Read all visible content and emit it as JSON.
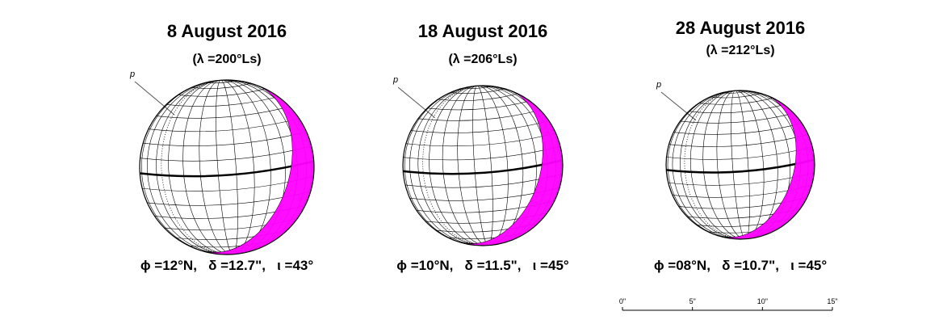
{
  "panels": [
    {
      "title": "8 August 2016",
      "subtitle": "(λ =200°Ls)",
      "pole": "p",
      "footer": "ϕ =12°N,   δ =12.7\",   ι =43°"
    },
    {
      "title": "18 August 2016",
      "subtitle": "(λ =206°Ls)",
      "pole": "p",
      "footer": "ϕ =10°N,   δ =11.5\",   ι =45°"
    },
    {
      "title": "28 August 2016",
      "subtitle": "(λ =212°Ls)",
      "pole": "p",
      "footer": "ϕ =08°N,   δ =10.7\",   ι =45°"
    }
  ],
  "scale_bar": {
    "labels": [
      "0\"",
      "5\"",
      "10\"",
      "15\""
    ]
  }
}
